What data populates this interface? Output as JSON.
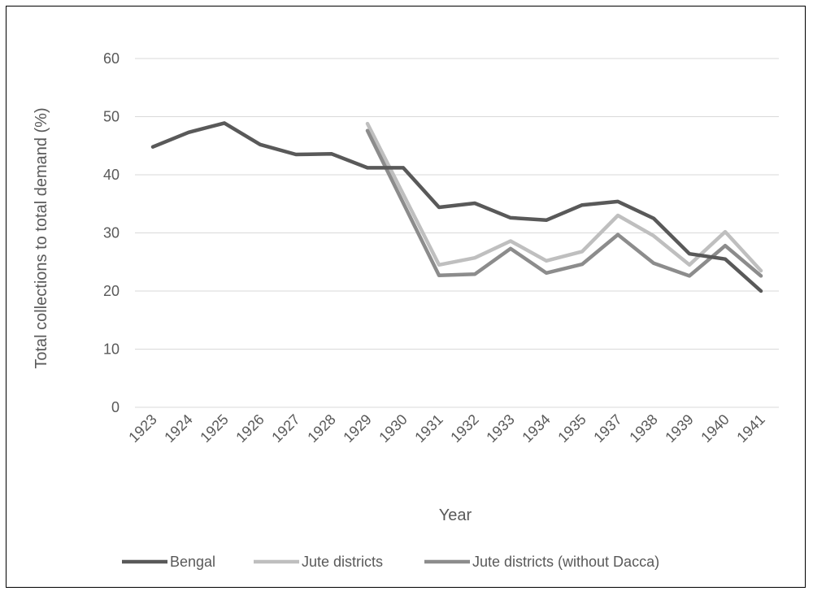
{
  "chart_data": {
    "type": "line",
    "title": "",
    "xlabel": "Year",
    "ylabel": "Total collections to total demand (%)",
    "ylim": [
      0,
      60
    ],
    "yticks": [
      0,
      10,
      20,
      30,
      40,
      50,
      60
    ],
    "categories": [
      "1923",
      "1924",
      "1925",
      "1926",
      "1927",
      "1928",
      "1929",
      "1930",
      "1931",
      "1932",
      "1933",
      "1934",
      "1935",
      "1937",
      "1938",
      "1939",
      "1940",
      "1941"
    ],
    "grid": true,
    "legend_position": "bottom",
    "series": [
      {
        "name": "Bengal",
        "color": "#595959",
        "values": [
          44.8,
          47.3,
          48.9,
          45.2,
          43.5,
          43.6,
          41.2,
          41.2,
          34.4,
          35.1,
          32.6,
          32.2,
          34.8,
          35.4,
          32.5,
          26.4,
          25.5,
          20.0
        ]
      },
      {
        "name": "Jute districts",
        "color": "#bfbfbf",
        "values": [
          null,
          null,
          null,
          null,
          null,
          null,
          48.8,
          null,
          24.5,
          25.7,
          28.6,
          25.2,
          26.8,
          33.0,
          29.5,
          24.5,
          30.2,
          23.5
        ]
      },
      {
        "name": "Jute districts (without Dacca)",
        "color": "#8c8c8c",
        "values": [
          null,
          null,
          null,
          null,
          null,
          null,
          47.6,
          null,
          22.7,
          22.9,
          27.3,
          23.1,
          24.6,
          29.7,
          24.8,
          22.6,
          27.8,
          22.6
        ]
      }
    ]
  }
}
